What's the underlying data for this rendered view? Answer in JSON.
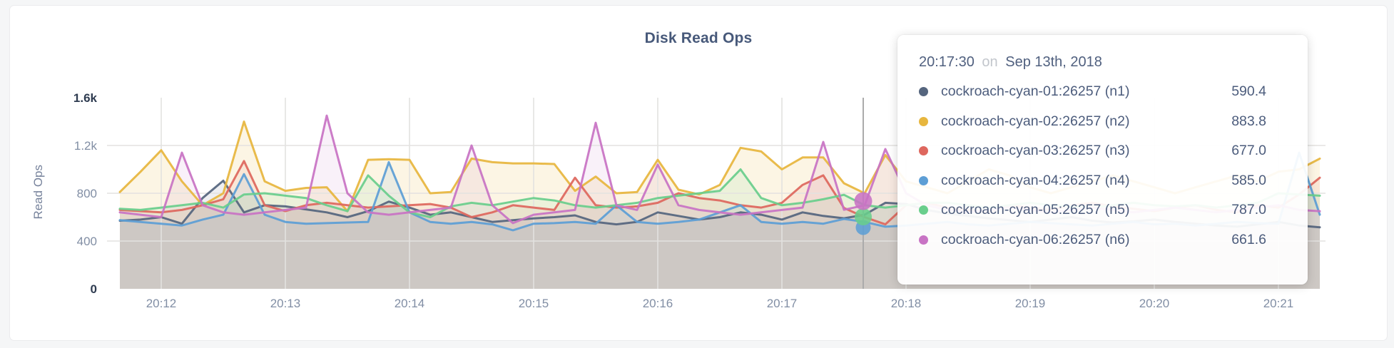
{
  "chart_data": {
    "type": "area",
    "title": "Disk Read Ops",
    "ylabel": "Read Ops",
    "xlabel": "",
    "ylim": [
      0,
      1600
    ],
    "grid": true,
    "x_range": {
      "start": "20:11:40",
      "end": "20:21:22"
    },
    "sample_interval_sec": 10,
    "x_ticks": [
      "20:12",
      "20:13",
      "20:14",
      "20:15",
      "20:16",
      "20:17",
      "20:18",
      "20:19",
      "20:20",
      "20:21"
    ],
    "y_ticks": [
      {
        "label": "0",
        "value": 0,
        "emphasis": true
      },
      {
        "label": "400",
        "value": 400,
        "emphasis": false
      },
      {
        "label": "800",
        "value": 800,
        "emphasis": false
      },
      {
        "label": "1.2k",
        "value": 1200,
        "emphasis": false
      },
      {
        "label": "1.6k",
        "value": 1600,
        "emphasis": true
      }
    ],
    "times": [
      "20:11:40",
      "20:11:50",
      "20:12:00",
      "20:12:10",
      "20:12:20",
      "20:12:30",
      "20:12:40",
      "20:12:50",
      "20:13:00",
      "20:13:10",
      "20:13:20",
      "20:13:30",
      "20:13:40",
      "20:13:50",
      "20:14:00",
      "20:14:10",
      "20:14:20",
      "20:14:30",
      "20:14:40",
      "20:14:50",
      "20:15:00",
      "20:15:10",
      "20:15:20",
      "20:15:30",
      "20:15:40",
      "20:15:50",
      "20:16:00",
      "20:16:10",
      "20:16:20",
      "20:16:30",
      "20:16:40",
      "20:16:50",
      "20:17:00",
      "20:17:10",
      "20:17:20",
      "20:17:30",
      "20:17:40",
      "20:17:50",
      "20:18:00",
      "20:18:10",
      "20:18:20",
      "20:18:30",
      "20:18:40",
      "20:18:50",
      "20:19:00",
      "20:19:10",
      "20:19:20",
      "20:19:30",
      "20:19:40",
      "20:19:50",
      "20:20:00",
      "20:20:10",
      "20:20:20",
      "20:20:30",
      "20:20:40",
      "20:20:50",
      "20:21:00",
      "20:21:10",
      "20:21:20"
    ],
    "series": [
      {
        "name": "cockroach-cyan-01:26257 (n1)",
        "node": "n1",
        "color": "#55657e",
        "values": [
          570,
          580,
          600,
          545,
          760,
          905,
          640,
          700,
          690,
          665,
          640,
          600,
          650,
          730,
          680,
          620,
          640,
          600,
          560,
          575,
          590,
          600,
          615,
          560,
          540,
          560,
          640,
          610,
          580,
          600,
          640,
          620,
          580,
          640,
          610,
          590.4,
          620,
          720,
          710,
          660,
          630,
          610,
          590,
          575,
          560,
          580,
          600,
          570,
          555,
          565,
          580,
          560,
          545,
          530,
          520,
          540,
          560,
          530,
          515
        ]
      },
      {
        "name": "cockroach-cyan-02:26257 (n2)",
        "node": "n2",
        "color": "#e7b63e",
        "values": [
          810,
          980,
          1160,
          900,
          700,
          800,
          1400,
          900,
          820,
          845,
          850,
          650,
          1080,
          1085,
          1080,
          800,
          810,
          1090,
          1060,
          1050,
          1050,
          1045,
          820,
          940,
          800,
          810,
          1080,
          830,
          790,
          870,
          1180,
          1150,
          1000,
          1100,
          1100,
          883.8,
          800,
          1120,
          900,
          850,
          800,
          900,
          1000,
          950,
          850,
          800,
          850,
          900,
          950,
          900,
          850,
          800,
          850,
          900,
          950,
          900,
          980,
          1000,
          1090
        ]
      },
      {
        "name": "cockroach-cyan-03:26257 (n3)",
        "node": "n3",
        "color": "#de675e",
        "values": [
          660,
          650,
          640,
          660,
          700,
          750,
          1070,
          700,
          650,
          700,
          720,
          700,
          680,
          690,
          700,
          710,
          680,
          600,
          640,
          700,
          680,
          660,
          930,
          700,
          680,
          690,
          720,
          800,
          760,
          740,
          700,
          680,
          720,
          870,
          950,
          677,
          600,
          540,
          700,
          720,
          680,
          660,
          640,
          700,
          680,
          660,
          700,
          720,
          690,
          670,
          650,
          680,
          700,
          660,
          640,
          700,
          680,
          790,
          930
        ]
      },
      {
        "name": "cockroach-cyan-04:26257 (n4)",
        "node": "n4",
        "color": "#5d9ed5",
        "values": [
          575,
          560,
          545,
          530,
          580,
          620,
          960,
          620,
          560,
          545,
          550,
          555,
          560,
          1060,
          640,
          560,
          545,
          560,
          540,
          490,
          545,
          550,
          560,
          545,
          700,
          560,
          545,
          560,
          580,
          640,
          700,
          560,
          545,
          560,
          545,
          585,
          560,
          520,
          530,
          545,
          560,
          540,
          530,
          545,
          560,
          550,
          540,
          530,
          545,
          560,
          540,
          545,
          530,
          545,
          560,
          550,
          545,
          1140,
          620
        ]
      },
      {
        "name": "cockroach-cyan-05:26257 (n5)",
        "node": "n5",
        "color": "#69ce8c",
        "values": [
          670,
          660,
          680,
          700,
          720,
          680,
          790,
          800,
          780,
          760,
          700,
          650,
          950,
          780,
          640,
          600,
          690,
          720,
          700,
          730,
          760,
          740,
          700,
          680,
          700,
          720,
          760,
          780,
          800,
          820,
          1000,
          760,
          700,
          720,
          750,
          787,
          700,
          680,
          700,
          720,
          720,
          700,
          680,
          700,
          720,
          700,
          690,
          680,
          700,
          720,
          700,
          690,
          700,
          680,
          700,
          720,
          800,
          790,
          780
        ]
      },
      {
        "name": "cockroach-cyan-06:26257 (n6)",
        "node": "n6",
        "color": "#c873c4",
        "values": [
          640,
          620,
          600,
          1140,
          700,
          640,
          620,
          640,
          660,
          680,
          1450,
          800,
          640,
          620,
          640,
          660,
          680,
          1200,
          700,
          550,
          620,
          640,
          660,
          1390,
          700,
          660,
          1040,
          700,
          660,
          640,
          620,
          640,
          660,
          680,
          1230,
          661.6,
          700,
          1170,
          800,
          700,
          660,
          640,
          660,
          680,
          660,
          640,
          660,
          680,
          660,
          640,
          660,
          680,
          660,
          640,
          660,
          680,
          700,
          660,
          650
        ]
      }
    ]
  },
  "hover": {
    "time": "20:17:30",
    "conjunction": "on",
    "date": "Sep 13th, 2018",
    "rows": [
      {
        "name": "cockroach-cyan-01:26257 (n1)",
        "node": "n1",
        "value": "590.4"
      },
      {
        "name": "cockroach-cyan-02:26257 (n2)",
        "node": "n2",
        "value": "883.8"
      },
      {
        "name": "cockroach-cyan-03:26257 (n3)",
        "node": "n3",
        "value": "677.0"
      },
      {
        "name": "cockroach-cyan-04:26257 (n4)",
        "node": "n4",
        "value": "585.0"
      },
      {
        "name": "cockroach-cyan-05:26257 (n5)",
        "node": "n5",
        "value": "787.0"
      },
      {
        "name": "cockroach-cyan-06:26257 (n6)",
        "node": "n6",
        "value": "661.6"
      }
    ],
    "highlighted_nodes": [
      "n4",
      "n5",
      "n6"
    ]
  }
}
